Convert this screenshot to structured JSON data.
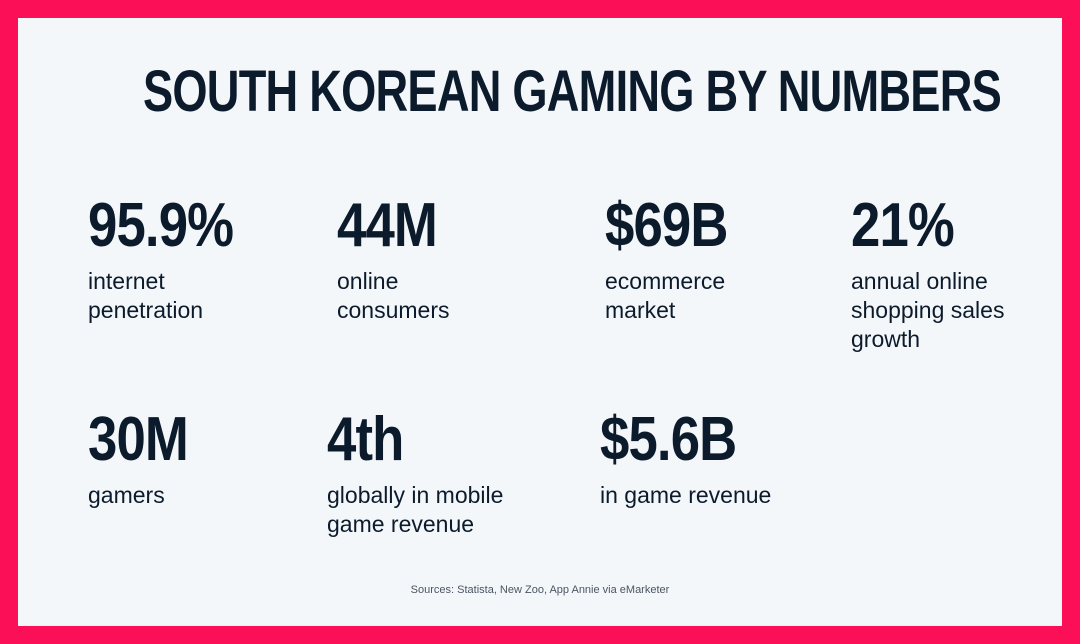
{
  "title": "SOUTH KOREAN GAMING BY NUMBERS",
  "stats": [
    {
      "value": "95.9%",
      "label": [
        "internet",
        "penetration"
      ]
    },
    {
      "value": "44M",
      "label": [
        "online",
        "consumers"
      ]
    },
    {
      "value": "$69B",
      "label": [
        "ecommerce",
        "market"
      ]
    },
    {
      "value": "21%",
      "label": [
        "annual online",
        "shopping sales",
        "growth"
      ]
    },
    {
      "value": "30M",
      "label": [
        "gamers"
      ]
    },
    {
      "value": "4th",
      "label": [
        "globally in mobile",
        "game revenue"
      ]
    },
    {
      "value": "$5.6B",
      "label": [
        "in game revenue"
      ]
    }
  ],
  "source": "Sources: Statista, New Zoo, App Annie via eMarketer"
}
